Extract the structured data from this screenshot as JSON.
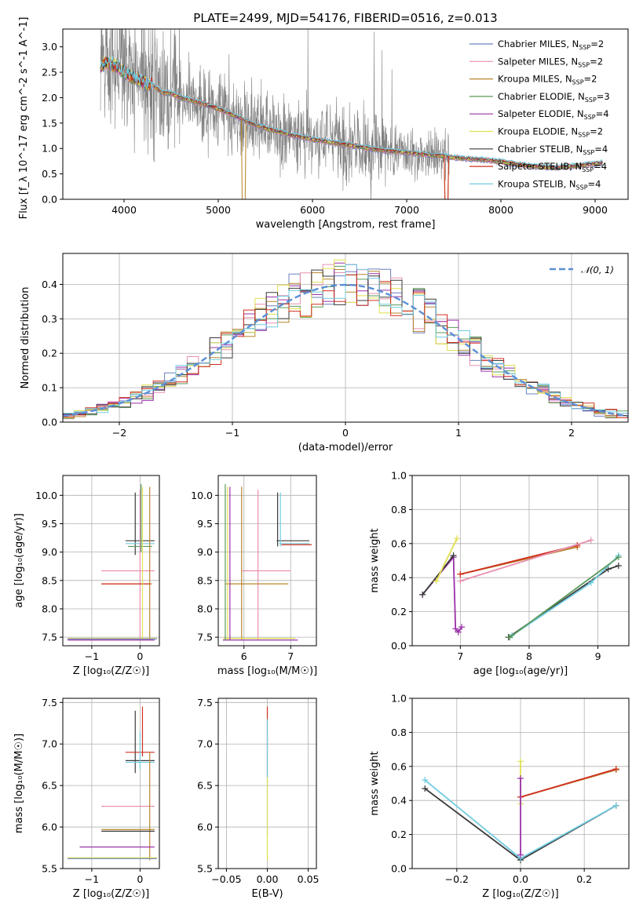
{
  "palette": [
    "#6a80c0",
    "#e890b0",
    "#b8862c",
    "#5a9a5a",
    "#9a30a8",
    "#e0e050",
    "#3a3a3a",
    "#d03020",
    "#70cce0"
  ],
  "chart_data": [
    {
      "id": "spectrum",
      "type": "line",
      "title": "PLATE=2499, MJD=54176, FIBERID=0516, z=0.013",
      "xlabel": "wavelength [Angstrom, rest frame]",
      "ylabel": "Flux [f_λ 10^-17 erg cm^-2 s^-1 A^-1]",
      "xlim": [
        3350,
        9350
      ],
      "ylim": [
        0,
        3.35
      ],
      "xticks": [
        4000,
        5000,
        6000,
        7000,
        8000,
        9000
      ],
      "yticks": [
        0.0,
        0.5,
        1.0,
        1.5,
        2.0,
        2.5,
        3.0
      ],
      "xticklabels": [
        "4000",
        "5000",
        "6000",
        "7000",
        "8000",
        "9000"
      ],
      "yticklabels": [
        "0.0",
        "0.5",
        "1.0",
        "1.5",
        "2.0",
        "2.5",
        "3.0"
      ],
      "grid": false,
      "legend_position": "top-right",
      "legend": [
        {
          "model": "Chabrier MILES",
          "nssp": "2"
        },
        {
          "model": "Salpeter MILES",
          "nssp": "2"
        },
        {
          "model": "Kroupa MILES",
          "nssp": "2"
        },
        {
          "model": "Chabrier ELODIE",
          "nssp": "3"
        },
        {
          "model": "Salpeter ELODIE",
          "nssp": "4"
        },
        {
          "model": "Kroupa ELODIE",
          "nssp": "2"
        },
        {
          "model": "Chabrier STELIB",
          "nssp": "4"
        },
        {
          "model": "Salpeter STELIB",
          "nssp": "4"
        },
        {
          "model": "Kroupa STELIB",
          "nssp": "4"
        }
      ],
      "model_continuum": {
        "x": [
          3750,
          3800,
          3900,
          4000,
          4100,
          4200,
          4300,
          4400,
          4500,
          4600,
          4800,
          5000,
          5200,
          5400,
          5600,
          5800,
          6000,
          6200,
          6400,
          6600,
          6800,
          7000,
          7200,
          7400,
          7600,
          7800,
          8000,
          8200,
          8400,
          8600,
          8800,
          9000,
          9080
        ],
        "y": [
          2.6,
          2.7,
          2.65,
          2.5,
          2.4,
          2.3,
          2.25,
          2.1,
          2.08,
          2.0,
          1.9,
          1.78,
          1.62,
          1.45,
          1.35,
          1.25,
          1.18,
          1.12,
          1.06,
          1.0,
          0.95,
          0.92,
          0.88,
          0.85,
          0.8,
          0.78,
          0.74,
          0.68,
          0.64,
          0.62,
          0.66,
          0.7,
          0.72
        ]
      },
      "observed_range": [
        3750,
        9080
      ]
    },
    {
      "id": "residuals",
      "type": "histogram",
      "xlabel": "(data-model)/error",
      "ylabel": "Normed distribution",
      "xlim": [
        -2.5,
        2.5
      ],
      "ylim": [
        0,
        0.49
      ],
      "xticks": [
        -2,
        -1,
        0,
        1,
        2
      ],
      "yticks": [
        0.0,
        0.1,
        0.2,
        0.3,
        0.4
      ],
      "xticklabels": [
        "−2",
        "−1",
        "0",
        "1",
        "2"
      ],
      "yticklabels": [
        "0.0",
        "0.1",
        "0.2",
        "0.3",
        "0.4"
      ],
      "grid": true,
      "legend_position": "top-right",
      "legend_label": "𝒩(0, 1)",
      "bin_width": 0.1,
      "bin_start": -2.5
    },
    {
      "id": "age-vs-Z",
      "type": "errorbar",
      "xlabel": "Z [log₁₀(Z/Z☉)]",
      "ylabel": "age  [log₁₀(age/yr)]",
      "xlim": [
        -1.6,
        0.4
      ],
      "ylim": [
        7.35,
        10.35
      ],
      "xticks": [
        -1,
        0
      ],
      "yticks": [
        7.5,
        8.0,
        8.5,
        9.0,
        9.5,
        10.0
      ],
      "xticklabels": [
        "−1",
        "0"
      ],
      "yticklabels": [
        "7.5",
        "8.0",
        "8.5",
        "9.0",
        "9.5",
        "10.0"
      ],
      "grid": true
    },
    {
      "id": "age-vs-mass",
      "type": "errorbar",
      "xlabel": "mass [log₁₀(M/M☉)]",
      "xlim": [
        5.45,
        7.55
      ],
      "ylim": [
        7.35,
        10.35
      ],
      "xticks": [
        6,
        7
      ],
      "yticks": [
        7.5,
        8.0,
        8.5,
        9.0,
        9.5,
        10.0
      ],
      "xticklabels": [
        "6",
        "7"
      ],
      "yticklabels": [
        "7.5",
        "8.0",
        "8.5",
        "9.0",
        "9.5",
        "10.0"
      ],
      "grid": true
    },
    {
      "id": "weight-vs-age",
      "type": "line",
      "xlabel": "age  [log₁₀(age/yr)]",
      "ylabel": "mass weight",
      "xlim": [
        6.3,
        9.45
      ],
      "ylim": [
        0,
        1.0
      ],
      "xticks": [
        7,
        8,
        9
      ],
      "yticks": [
        0.0,
        0.2,
        0.4,
        0.6,
        0.8,
        1.0
      ],
      "xticklabels": [
        "7",
        "8",
        "9"
      ],
      "yticklabels": [
        "0.0",
        "0.2",
        "0.4",
        "0.6",
        "0.8",
        "1.0"
      ],
      "grid": true,
      "series": [
        {
          "color": 4,
          "points": [
            [
              6.45,
              0.3
            ],
            [
              6.9,
              0.52
            ],
            [
              6.93,
              0.1
            ],
            [
              6.97,
              0.08
            ],
            [
              7.02,
              0.11
            ]
          ]
        },
        {
          "color": 6,
          "points": [
            [
              6.45,
              0.3
            ],
            [
              6.9,
              0.53
            ]
          ]
        },
        {
          "color": 5,
          "points": [
            [
              6.65,
              0.38
            ],
            [
              6.95,
              0.63
            ]
          ]
        },
        {
          "color": 2,
          "points": [
            [
              7.0,
              0.42
            ],
            [
              8.7,
              0.58
            ]
          ]
        },
        {
          "color": 7,
          "points": [
            [
              7.0,
              0.42
            ],
            [
              8.7,
              0.59
            ]
          ]
        },
        {
          "color": 1,
          "points": [
            [
              7.0,
              0.38
            ],
            [
              8.9,
              0.62
            ]
          ]
        },
        {
          "color": 6,
          "points": [
            [
              7.7,
              0.05
            ],
            [
              9.15,
              0.45
            ],
            [
              9.3,
              0.47
            ]
          ]
        },
        {
          "color": 8,
          "points": [
            [
              7.75,
              0.06
            ],
            [
              8.9,
              0.37
            ],
            [
              9.3,
              0.53
            ]
          ]
        },
        {
          "color": 3,
          "points": [
            [
              7.72,
              0.05
            ],
            [
              9.3,
              0.52
            ]
          ]
        }
      ]
    },
    {
      "id": "mass-vs-Z",
      "type": "errorbar",
      "xlabel": "Z [log₁₀(Z/Z☉)]",
      "ylabel": "mass [log₁₀(M/M☉)]",
      "xlim": [
        -1.6,
        0.4
      ],
      "ylim": [
        5.5,
        7.55
      ],
      "xticks": [
        -1,
        0
      ],
      "yticks": [
        5.5,
        6.0,
        6.5,
        7.0,
        7.5
      ],
      "xticklabels": [
        "−1",
        "0"
      ],
      "yticklabels": [
        "5.5",
        "6.0",
        "6.5",
        "7.0",
        "7.5"
      ],
      "grid": true
    },
    {
      "id": "mass-vs-EBV",
      "type": "errorbar",
      "xlabel": "E(B-V)",
      "xlim": [
        -0.06,
        0.06
      ],
      "ylim": [
        5.5,
        7.55
      ],
      "xticks": [
        -0.05,
        0.0,
        0.05
      ],
      "yticks": [
        5.5,
        6.0,
        6.5,
        7.0,
        7.5
      ],
      "xticklabels": [
        "−0.05",
        "0.00",
        "0.05"
      ],
      "yticklabels": [
        "5.5",
        "6.0",
        "6.5",
        "7.0",
        "7.5"
      ],
      "grid": true
    },
    {
      "id": "weight-vs-Z",
      "type": "line",
      "xlabel": "Z [log₁₀(Z/Z☉)]",
      "ylabel": "mass weight",
      "xlim": [
        -0.34,
        0.34
      ],
      "ylim": [
        0,
        1.0
      ],
      "xticks": [
        -0.2,
        0.0,
        0.2
      ],
      "yticks": [
        0.0,
        0.2,
        0.4,
        0.6,
        0.8,
        1.0
      ],
      "xticklabels": [
        "−0.2",
        "0.0",
        "0.2"
      ],
      "yticklabels": [
        "0.0",
        "0.2",
        "0.4",
        "0.6",
        "0.8",
        "1.0"
      ],
      "grid": true,
      "series": [
        {
          "color": 6,
          "points": [
            [
              -0.3,
              0.47
            ],
            [
              0.0,
              0.05
            ],
            [
              0.3,
              0.37
            ]
          ]
        },
        {
          "color": 8,
          "points": [
            [
              -0.3,
              0.52
            ],
            [
              0.0,
              0.06
            ],
            [
              0.3,
              0.37
            ]
          ]
        },
        {
          "color": 2,
          "points": [
            [
              0.0,
              0.42
            ],
            [
              0.3,
              0.58
            ]
          ]
        },
        {
          "color": 7,
          "points": [
            [
              0.0,
              0.42
            ],
            [
              0.3,
              0.585
            ]
          ]
        },
        {
          "color": 5,
          "points": [
            [
              0.0,
              0.38
            ],
            [
              0.0,
              0.63
            ]
          ]
        },
        {
          "color": 4,
          "points": [
            [
              0.0,
              0.08
            ],
            [
              0.0,
              0.53
            ]
          ]
        }
      ]
    }
  ]
}
